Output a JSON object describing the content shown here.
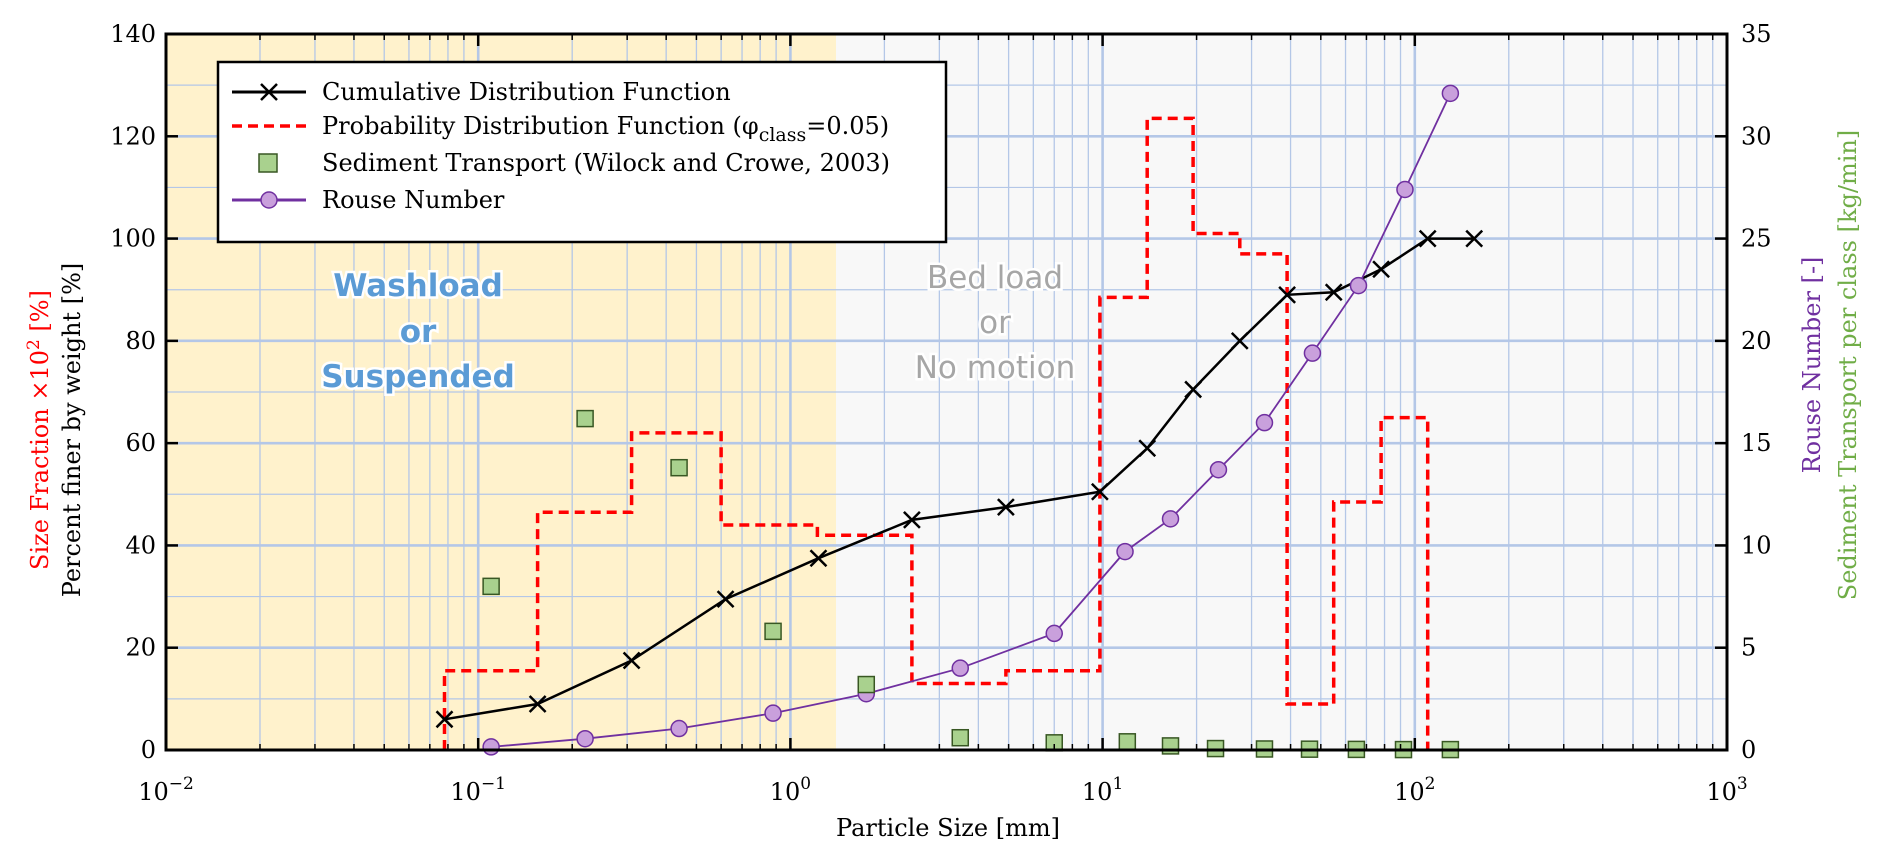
{
  "colors": {
    "washload_region": "#fff2cc",
    "bedload_region": "#f8f8f8",
    "grid": "#b4c7e7",
    "cdf": "#000000",
    "pdf": "#ff0000",
    "sediment_fill": "#a9d18e",
    "sediment_stroke": "#385723",
    "rouse_line": "#7030a0",
    "rouse_fill": "#c9a0dc",
    "annot_wash": "#5b9bd5",
    "annot_bed": "#a6a6a6",
    "y2_title": "#7030a0",
    "y3_title": "#70ad47",
    "y1_red": "#ff0000"
  },
  "chart_data": {
    "type": "line",
    "x_scale": "log",
    "xlim": [
      0.01,
      1000
    ],
    "ylim_left": [
      0,
      140
    ],
    "ylim_right": [
      0,
      35
    ],
    "grid": true,
    "legend_position": "top-left",
    "xlabel": "Particle Size [mm]",
    "ylabel_left_line1": "Size Fraction ×10",
    "ylabel_left_line1_sup": "2",
    "ylabel_left_line1_end": " [%]",
    "ylabel_left_line2": "Percent finer by weight [%]",
    "ylabel_right_line1": "Rouse Number [-]",
    "ylabel_right_line2": "Sediment Transport per class [kg/min]",
    "x_ticks": [
      {
        "base": "10",
        "exp": "−2"
      },
      {
        "base": "10",
        "exp": "−1"
      },
      {
        "base": "10",
        "exp": "0"
      },
      {
        "base": "10",
        "exp": "1"
      },
      {
        "base": "10",
        "exp": "2"
      },
      {
        "base": "10",
        "exp": "3"
      }
    ],
    "y_left_ticks": [
      "0",
      "20",
      "40",
      "60",
      "80",
      "100",
      "120",
      "140"
    ],
    "y_right_ticks": [
      "0",
      "5",
      "10",
      "15",
      "20",
      "25",
      "30",
      "35"
    ],
    "regions": [
      {
        "x_from": 0.01,
        "x_to": 1.4,
        "label_lines": [
          "Washload",
          "or",
          "Suspended"
        ]
      },
      {
        "x_from": 1.4,
        "x_to": 1000,
        "label_lines": [
          "Bed load",
          "or",
          "No motion"
        ]
      }
    ],
    "series": [
      {
        "name": "Cumulative Distribution Function",
        "axis": "left",
        "x": [
          0.078,
          0.155,
          0.31,
          0.62,
          1.23,
          2.45,
          4.9,
          9.8,
          13.9,
          19.5,
          27.5,
          39,
          55,
          78,
          110,
          155
        ],
        "y": [
          6,
          9,
          17.5,
          29.5,
          37.5,
          45,
          47.5,
          50.5,
          59,
          70.5,
          80,
          89,
          89.5,
          94,
          100,
          100
        ]
      },
      {
        "name": "Probability Distribution Function (φ",
        "name_sub": "class",
        "name_end": "=0.05)",
        "axis": "left",
        "type": "step",
        "x": [
          0.078,
          0.078,
          0.155,
          0.155,
          0.31,
          0.31,
          0.6,
          0.6,
          1.22,
          1.22,
          2.45,
          2.45,
          4.9,
          4.9,
          9.8,
          9.8,
          13.9,
          13.9,
          19.5,
          19.5,
          27.5,
          27.5,
          39,
          39,
          55,
          55,
          78,
          78,
          110,
          110
        ],
        "y": [
          0,
          15.5,
          15.5,
          46.5,
          46.5,
          62,
          62,
          44,
          44,
          42,
          42,
          13,
          13,
          15.5,
          15.5,
          88.5,
          88.5,
          123.5,
          123.5,
          101,
          101,
          97,
          97,
          9,
          9,
          48.5,
          48.5,
          65,
          65,
          0
        ]
      },
      {
        "name": "Sediment Transport (Wilock and Crowe, 2003)",
        "axis": "right",
        "type": "scatter",
        "x": [
          0.11,
          0.22,
          0.44,
          0.88,
          1.75,
          3.5,
          7,
          12,
          16.5,
          23,
          33,
          46,
          65,
          92,
          130
        ],
        "y": [
          8,
          16.2,
          13.8,
          5.8,
          3.2,
          0.6,
          0.35,
          0.4,
          0.2,
          0.07,
          0.05,
          0.04,
          0.03,
          0.02,
          0.02
        ]
      },
      {
        "name": "Rouse Number",
        "axis": "right",
        "x": [
          0.11,
          0.22,
          0.44,
          0.88,
          1.75,
          3.5,
          7,
          11.8,
          16.5,
          23.5,
          33,
          47,
          66,
          93,
          130
        ],
        "y": [
          0.15,
          0.55,
          1.05,
          1.8,
          2.75,
          4,
          5.7,
          9.7,
          11.3,
          13.7,
          16,
          19.4,
          22.7,
          27.4,
          32.1
        ]
      }
    ]
  }
}
